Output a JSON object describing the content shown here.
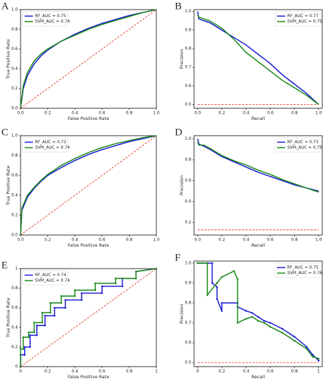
{
  "chart_data": [
    {
      "type": "line",
      "label": "A",
      "xlabel": "False Positive Rate",
      "ylabel": "True Positive Rate",
      "legend": "upper left",
      "xlim": [
        0,
        1
      ],
      "ylim": [
        0,
        1
      ],
      "xticks": [
        {
          "value": 0,
          "label": "0.0"
        },
        0.2,
        0.4,
        0.6,
        0.8,
        {
          "value": 1,
          "label": "1.0"
        }
      ],
      "yticks": [
        {
          "value": 0,
          "label": "0.0"
        },
        0.2,
        0.4,
        0.6,
        0.8,
        {
          "value": 1,
          "label": "1.0"
        }
      ],
      "series": [
        {
          "name": "RF_AUC = 0.75",
          "color": "#1f1fd6",
          "x": [
            0,
            0.02,
            0.05,
            0.1,
            0.15,
            0.2,
            0.3,
            0.4,
            0.5,
            0.6,
            0.7,
            0.8,
            0.9,
            1
          ],
          "values": [
            0,
            0.2,
            0.33,
            0.45,
            0.53,
            0.59,
            0.68,
            0.75,
            0.81,
            0.86,
            0.9,
            0.94,
            0.97,
            1
          ]
        },
        {
          "name": "SVM_AUC = 0.74",
          "color": "#1e8a1e",
          "x": [
            0,
            0.02,
            0.05,
            0.1,
            0.15,
            0.2,
            0.3,
            0.4,
            0.5,
            0.6,
            0.7,
            0.8,
            0.9,
            1
          ],
          "values": [
            0,
            0.23,
            0.36,
            0.48,
            0.55,
            0.6,
            0.68,
            0.74,
            0.8,
            0.85,
            0.89,
            0.93,
            0.97,
            1
          ]
        },
        {
          "color": "#e0301e",
          "linestyle": "dashed",
          "x": [
            0,
            1
          ],
          "values": [
            0,
            1
          ]
        }
      ]
    },
    {
      "type": "line",
      "label": "B",
      "xlabel": "Recall",
      "ylabel": "Precision",
      "legend": "upper right",
      "xlim": [
        -0.03,
        1.03
      ],
      "ylim": [
        0.48,
        1.01
      ],
      "xticks": [
        {
          "value": 0,
          "label": "0.0"
        },
        0.2,
        0.4,
        0.6,
        0.8,
        {
          "value": 1,
          "label": "1.0"
        }
      ],
      "yticks": [
        0.5,
        0.6,
        0.7,
        0.8,
        0.9,
        {
          "value": 1,
          "label": "1.0"
        }
      ],
      "series": [
        {
          "name": "RF_AUC = 0.77",
          "color": "#1f1fd6",
          "x": [
            0,
            0.01,
            0.05,
            0.1,
            0.2,
            0.3,
            0.4,
            0.5,
            0.6,
            0.7,
            0.8,
            0.9,
            1
          ],
          "values": [
            1,
            0.96,
            0.95,
            0.94,
            0.9,
            0.86,
            0.82,
            0.77,
            0.72,
            0.66,
            0.61,
            0.56,
            0.5
          ]
        },
        {
          "name": "SVM_AUC = 0.75",
          "color": "#1e8a1e",
          "x": [
            0,
            0.01,
            0.05,
            0.1,
            0.2,
            0.3,
            0.4,
            0.5,
            0.6,
            0.7,
            0.8,
            0.9,
            1
          ],
          "values": [
            0.98,
            0.97,
            0.96,
            0.95,
            0.91,
            0.85,
            0.78,
            0.73,
            0.68,
            0.63,
            0.59,
            0.55,
            0.5
          ]
        },
        {
          "color": "#e0301e",
          "linestyle": "dashed",
          "x": [
            0,
            1
          ],
          "values": [
            0.5,
            0.5
          ]
        }
      ]
    },
    {
      "type": "line",
      "label": "C",
      "xlabel": "False Positive Rate",
      "ylabel": "True Positive Rate",
      "legend": "upper left",
      "xlim": [
        0,
        1
      ],
      "ylim": [
        0,
        1
      ],
      "xticks": [
        {
          "value": 0,
          "label": "0.0"
        },
        0.2,
        0.4,
        0.6,
        0.8,
        {
          "value": 1,
          "label": "1.0"
        }
      ],
      "yticks": [
        {
          "value": 0,
          "label": "0.0"
        },
        0.2,
        0.4,
        0.6,
        0.8,
        {
          "value": 1,
          "label": "1.0"
        }
      ],
      "series": [
        {
          "name": "RF_AUC = 0.72",
          "color": "#1f1fd6",
          "x": [
            0,
            0.01,
            0.05,
            0.1,
            0.15,
            0.2,
            0.3,
            0.4,
            0.5,
            0.6,
            0.7,
            0.8,
            0.9,
            1
          ],
          "values": [
            0,
            0.25,
            0.38,
            0.47,
            0.54,
            0.6,
            0.68,
            0.75,
            0.81,
            0.86,
            0.9,
            0.94,
            0.97,
            1
          ]
        },
        {
          "name": "SVM_AUC = 0.74",
          "color": "#1e8a1e",
          "x": [
            0,
            0.01,
            0.05,
            0.1,
            0.15,
            0.2,
            0.3,
            0.4,
            0.5,
            0.6,
            0.7,
            0.8,
            0.9,
            1
          ],
          "values": [
            0,
            0.27,
            0.4,
            0.48,
            0.55,
            0.61,
            0.7,
            0.77,
            0.83,
            0.88,
            0.92,
            0.95,
            0.98,
            1
          ]
        },
        {
          "color": "#e0301e",
          "linestyle": "dashed",
          "x": [
            0,
            1
          ],
          "values": [
            0,
            1
          ]
        }
      ]
    },
    {
      "type": "line",
      "label": "D",
      "xlabel": "Recall",
      "ylabel": "Precision",
      "legend": "upper right",
      "xlim": [
        -0.03,
        1.03
      ],
      "ylim": [
        0.08,
        1.03
      ],
      "xticks": [
        {
          "value": 0,
          "label": "0.0"
        },
        0.2,
        0.4,
        0.6,
        0.8,
        {
          "value": 1,
          "label": "1.0"
        }
      ],
      "yticks": [
        0.2,
        0.4,
        0.6,
        0.8,
        {
          "value": 1,
          "label": "1.0"
        }
      ],
      "series": [
        {
          "name": "RF_AUC = 0.73",
          "color": "#1f1fd6",
          "x": [
            0,
            0.01,
            0.05,
            0.1,
            0.2,
            0.3,
            0.4,
            0.5,
            0.6,
            0.7,
            0.8,
            0.9,
            1
          ],
          "values": [
            1,
            0.95,
            0.93,
            0.9,
            0.83,
            0.78,
            0.73,
            0.68,
            0.64,
            0.6,
            0.56,
            0.53,
            0.5
          ]
        },
        {
          "name": "SVM_AUC = 0.75",
          "color": "#1e8a1e",
          "x": [
            0,
            0.01,
            0.05,
            0.1,
            0.2,
            0.3,
            0.4,
            0.5,
            0.6,
            0.7,
            0.8,
            0.9,
            1
          ],
          "values": [
            0.97,
            0.94,
            0.94,
            0.91,
            0.84,
            0.79,
            0.75,
            0.7,
            0.66,
            0.61,
            0.57,
            0.53,
            0.49
          ]
        },
        {
          "color": "#e0301e",
          "linestyle": "dashed",
          "x": [
            0,
            1
          ],
          "values": [
            0.13,
            0.13
          ]
        }
      ]
    },
    {
      "type": "line",
      "label": "E",
      "xlabel": "False Positive Rate",
      "ylabel": "True Positive Rate",
      "legend": "upper left",
      "markers": true,
      "xlim": [
        0,
        1
      ],
      "ylim": [
        0,
        1
      ],
      "xticks": [
        0,
        0.2,
        0.4,
        0.6,
        0.8,
        1
      ],
      "yticks": [
        0,
        0.2,
        0.4,
        0.6,
        0.8,
        1
      ],
      "series": [
        {
          "name": "RF_AUC = 0.74",
          "color": "#1f1fd6",
          "x": [
            0,
            0,
            0.03,
            0.03,
            0.07,
            0.07,
            0.12,
            0.12,
            0.18,
            0.18,
            0.25,
            0.25,
            0.33,
            0.33,
            0.45,
            0.45,
            0.6,
            0.6,
            0.75,
            0.75,
            0.85,
            0.85,
            1
          ],
          "values": [
            0,
            0.12,
            0.12,
            0.2,
            0.2,
            0.32,
            0.32,
            0.42,
            0.42,
            0.52,
            0.52,
            0.6,
            0.6,
            0.68,
            0.68,
            0.75,
            0.75,
            0.82,
            0.82,
            0.9,
            0.9,
            0.97,
            1
          ]
        },
        {
          "name": "SVM_AUC = 0.74",
          "color": "#1e8a1e",
          "x": [
            0,
            0,
            0.02,
            0.02,
            0.06,
            0.06,
            0.1,
            0.1,
            0.16,
            0.16,
            0.22,
            0.22,
            0.3,
            0.3,
            0.4,
            0.4,
            0.55,
            0.55,
            0.7,
            0.7,
            0.85,
            0.85,
            1
          ],
          "values": [
            0,
            0.18,
            0.18,
            0.3,
            0.3,
            0.35,
            0.35,
            0.45,
            0.45,
            0.55,
            0.55,
            0.65,
            0.65,
            0.72,
            0.72,
            0.78,
            0.78,
            0.85,
            0.85,
            0.9,
            0.9,
            0.97,
            1
          ]
        },
        {
          "color": "#e0301e",
          "linestyle": "dashed",
          "x": [
            0,
            1
          ],
          "values": [
            0,
            1
          ]
        }
      ]
    },
    {
      "type": "line",
      "label": "F",
      "xlabel": "Recall",
      "ylabel": "Precision",
      "legend": "upper right",
      "markers": true,
      "xlim": [
        -0.03,
        1.03
      ],
      "ylim": [
        0.48,
        1.01
      ],
      "xticks": [
        0,
        0.2,
        0.4,
        0.6,
        0.8,
        1
      ],
      "yticks": [
        0.5,
        0.6,
        0.7,
        0.8,
        0.9,
        {
          "value": 1,
          "label": "1.0"
        }
      ],
      "series": [
        {
          "name": "RF_AUC = 0.75",
          "color": "#1f1fd6",
          "x": [
            0,
            0.08,
            0.12,
            0.12,
            0.16,
            0.16,
            0.2,
            0.2,
            0.33,
            0.33,
            0.4,
            0.45,
            0.5,
            0.55,
            0.6,
            0.7,
            0.8,
            0.9,
            0.95,
            1
          ],
          "values": [
            1,
            1,
            1,
            0.9,
            0.88,
            0.82,
            0.76,
            0.8,
            0.8,
            0.78,
            0.76,
            0.75,
            0.73,
            0.71,
            0.7,
            0.67,
            0.63,
            0.58,
            0.54,
            0.51
          ]
        },
        {
          "name": "SVM_AUC = 0.76",
          "color": "#1e8a1e",
          "x": [
            0,
            0.08,
            0.08,
            0.16,
            0.2,
            0.3,
            0.33,
            0.33,
            0.4,
            0.45,
            0.5,
            0.55,
            0.6,
            0.7,
            0.8,
            0.9,
            0.95,
            1
          ],
          "values": [
            1,
            1,
            0.84,
            0.9,
            0.93,
            0.96,
            0.92,
            0.7,
            0.72,
            0.73,
            0.71,
            0.7,
            0.68,
            0.65,
            0.61,
            0.57,
            0.53,
            0.52
          ]
        },
        {
          "color": "#e0301e",
          "linestyle": "dashed",
          "x": [
            0,
            1
          ],
          "values": [
            0.5,
            0.5
          ]
        }
      ]
    }
  ]
}
